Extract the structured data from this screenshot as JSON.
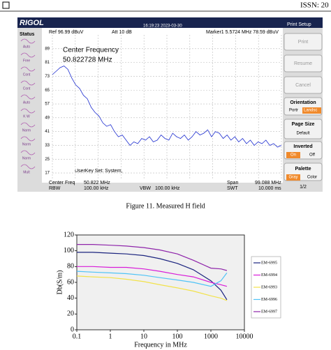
{
  "header": {
    "issn": "ISSN: 20"
  },
  "screenshot": {
    "logo": "RIGOL",
    "datetime": "16:19:23 2023-03-30",
    "status_title": "Status",
    "status_items": [
      "Auto",
      "Free",
      "Cont",
      "Cont",
      "Auto",
      "K W",
      "Norm",
      "Norm",
      "Norm",
      "Mult"
    ],
    "ref": "Ref  96.99 dBuV",
    "att": "Att  10 dB",
    "marker": "Marker1  5.5724 MHz  78.59 dBuV",
    "annotation_lines": [
      "Center Frequency",
      "50.822728 MHz"
    ],
    "userkey": "UserKey Set:  System,",
    "center_freq_label": "Center Freq",
    "center_freq_value": "50.822 MHz",
    "span_label": "Span",
    "span_value": "99.088 MHz",
    "rbw_label": "RBW",
    "rbw_value": "100.00 kHz",
    "vbw_label": "VBW",
    "vbw_value": "100.00 kHz",
    "swt_label": "SWT",
    "swt_value": "10.000 ms",
    "panel": {
      "title": "Print Setup",
      "print": "Print",
      "resume": "Resume",
      "cancel": "Cancel",
      "orientation": "Orientation",
      "portrait": "Portr",
      "landscape": "Landsc",
      "page_size": "Page Size",
      "default": "Default",
      "inverted": "Inverted",
      "on": "On",
      "off": "Off",
      "palette": "Palette",
      "gray": "Gray",
      "color": "Color",
      "page": "1/2"
    }
  },
  "caption": "Figure 11. Measured H field",
  "chart_data": [
    {
      "type": "line",
      "color": "#1f2fd0",
      "grid": true,
      "values": [
        74,
        76,
        78,
        79,
        77,
        72,
        68,
        66,
        62,
        60,
        55,
        52,
        50,
        46,
        44,
        45,
        41,
        38,
        39,
        36,
        33,
        35,
        34,
        37,
        36,
        38,
        35,
        36,
        39,
        37,
        36,
        40,
        38,
        37,
        39,
        36,
        38,
        41,
        39,
        40,
        42,
        38,
        41,
        40,
        37,
        39,
        36,
        38,
        35,
        37,
        34,
        36,
        33,
        35,
        34,
        36,
        33,
        34,
        32,
        33
      ],
      "ylim": [
        13,
        97
      ],
      "yticks": [
        89,
        81,
        73,
        65,
        57,
        49,
        41,
        33,
        25,
        17
      ]
    },
    {
      "type": "line",
      "log_x": true,
      "grid": false,
      "ylabel": "Db(S/m)",
      "xlabel": "Frequency in MHz",
      "x": [
        0.1,
        0.3,
        1,
        3,
        10,
        30,
        100,
        300,
        1000,
        2000,
        3000
      ],
      "xlim": [
        0.1,
        10000
      ],
      "xticks": [
        0.1,
        1,
        10,
        100,
        1000,
        10000
      ],
      "ylim": [
        0,
        120
      ],
      "yticks": [
        0,
        20,
        40,
        60,
        80,
        100,
        120
      ],
      "series": [
        {
          "name": "EM-6995",
          "color": "#1a237e",
          "values": [
            98,
            98,
            97,
            96,
            94,
            90,
            84,
            76,
            62,
            50,
            38
          ]
        },
        {
          "name": "EM-6994",
          "color": "#d81bd8",
          "values": [
            80,
            80,
            79,
            79,
            77,
            74,
            70,
            67,
            60,
            57,
            55
          ]
        },
        {
          "name": "EM-6993",
          "color": "#f2e24a",
          "values": [
            68,
            67,
            66,
            64,
            61,
            57,
            53,
            49,
            43,
            40,
            37
          ]
        },
        {
          "name": "EM-6996",
          "color": "#4fc3f7",
          "values": [
            74,
            73,
            72,
            71,
            69,
            66,
            63,
            60,
            55,
            62,
            72
          ]
        },
        {
          "name": "EM-6997",
          "color": "#8e24aa",
          "values": [
            108,
            108,
            107,
            106,
            104,
            101,
            96,
            88,
            78,
            77,
            75
          ]
        }
      ]
    }
  ]
}
